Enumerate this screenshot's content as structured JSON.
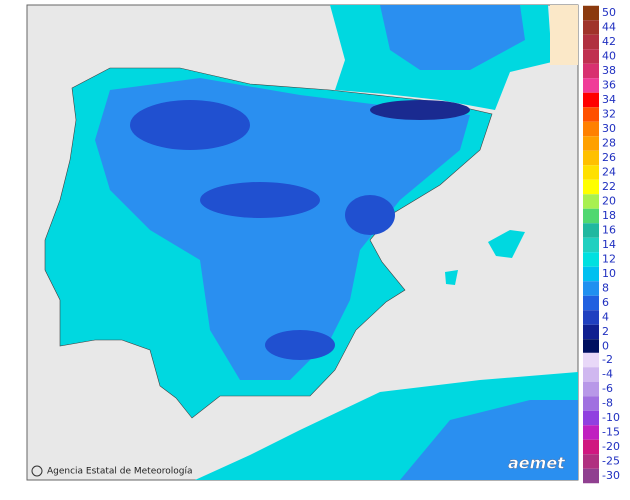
{
  "legend": {
    "entries": [
      {
        "label": "50",
        "color": "#8b3a0e"
      },
      {
        "label": "44",
        "color": "#a0332a"
      },
      {
        "label": "42",
        "color": "#b03040"
      },
      {
        "label": "40",
        "color": "#c03050"
      },
      {
        "label": "38",
        "color": "#d83070"
      },
      {
        "label": "36",
        "color": "#f03c98"
      },
      {
        "label": "34",
        "color": "#ff0000"
      },
      {
        "label": "32",
        "color": "#ff5000"
      },
      {
        "label": "30",
        "color": "#ff8000"
      },
      {
        "label": "28",
        "color": "#ffa000"
      },
      {
        "label": "26",
        "color": "#ffc000"
      },
      {
        "label": "24",
        "color": "#ffe000"
      },
      {
        "label": "22",
        "color": "#ffff00"
      },
      {
        "label": "20",
        "color": "#a8f050"
      },
      {
        "label": "18",
        "color": "#50d870"
      },
      {
        "label": "16",
        "color": "#20b8a0"
      },
      {
        "label": "14",
        "color": "#20d0c0"
      },
      {
        "label": "12",
        "color": "#00e0e0"
      },
      {
        "label": "10",
        "color": "#00c0f0"
      },
      {
        "label": "8",
        "color": "#2090f0"
      },
      {
        "label": "6",
        "color": "#2060e0"
      },
      {
        "label": "4",
        "color": "#2040c0"
      },
      {
        "label": "2",
        "color": "#102090"
      },
      {
        "label": "0",
        "color": "#001060"
      },
      {
        "label": "-2",
        "color": "#e8d8f8"
      },
      {
        "label": "-4",
        "color": "#d0b8f0"
      },
      {
        "label": "-6",
        "color": "#b898e8"
      },
      {
        "label": "-8",
        "color": "#a070e0"
      },
      {
        "label": "-10",
        "color": "#9040e0"
      },
      {
        "label": "-15",
        "color": "#c020c0"
      },
      {
        "label": "-20",
        "color": "#d01880"
      },
      {
        "label": "-25",
        "color": "#b03080"
      },
      {
        "label": "-30",
        "color": "#904090"
      }
    ]
  },
  "credit": "Agencia Estatal de Meteorología",
  "logo": "aemet"
}
